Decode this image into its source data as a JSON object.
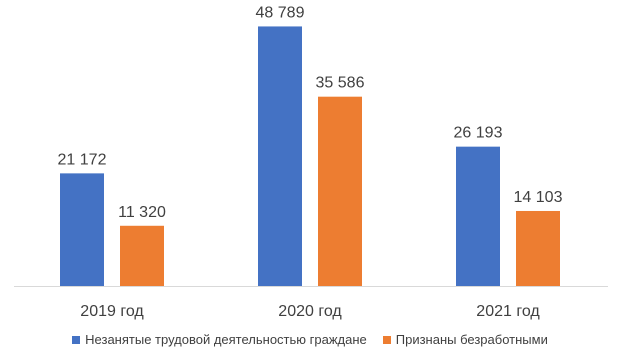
{
  "chart_data": {
    "type": "bar",
    "categories": [
      "2019 год",
      "2020 год",
      "2021 год"
    ],
    "series": [
      {
        "name": "Незанятые трудовой деятельностью граждане",
        "values": [
          21172,
          48789,
          26193
        ],
        "labels": [
          "21 172",
          "48 789",
          "26 193"
        ],
        "color": "#4472C4"
      },
      {
        "name": "Признаны безработными",
        "values": [
          11320,
          35586,
          14103
        ],
        "labels": [
          "11 320",
          "35 586",
          "14 103"
        ],
        "color": "#ED7D31"
      }
    ],
    "title": "",
    "xlabel": "",
    "ylabel": "",
    "ylim": [
      0,
      50000
    ],
    "grid": false,
    "legend_position": "bottom"
  }
}
